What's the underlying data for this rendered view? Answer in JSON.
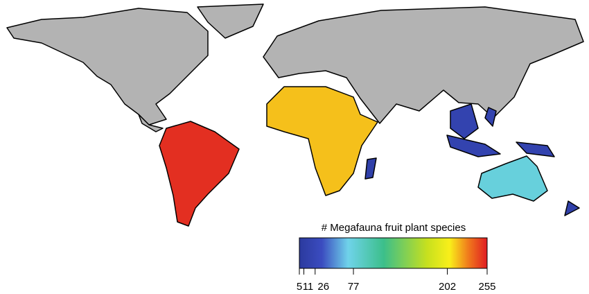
{
  "legend": {
    "title": "# Megafauna fruit plant species",
    "range": [
      5,
      255
    ],
    "ticks": [
      5,
      11,
      26,
      77,
      202,
      255
    ]
  },
  "regions": {
    "values": [
      250,
      215,
      77,
      20,
      20,
      20,
      20,
      15,
      15
    ]
  }
}
